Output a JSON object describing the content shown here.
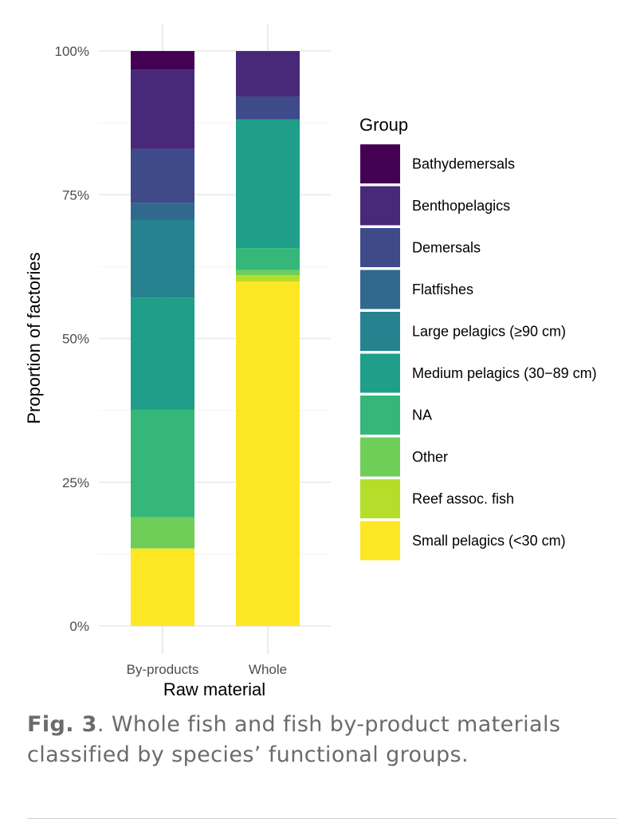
{
  "caption": {
    "label": "Fig. 3",
    "text": ". Whole fish and fish by-product materials classified by species’ functional groups."
  },
  "chart_data": {
    "type": "bar",
    "stacked": true,
    "categories": [
      "By-products",
      "Whole"
    ],
    "xlabel": "Raw material",
    "ylabel": "Proportion of factories",
    "ylim": [
      0,
      1
    ],
    "yticks": [
      {
        "value": 0,
        "label": "0%"
      },
      {
        "value": 0.25,
        "label": "25%"
      },
      {
        "value": 0.5,
        "label": "50%"
      },
      {
        "value": 0.75,
        "label": "75%"
      },
      {
        "value": 1,
        "label": "100%"
      }
    ],
    "grid": true,
    "legend": {
      "title": "Group",
      "position": "right"
    },
    "series": [
      {
        "name": "Small pelagics (<30 cm)",
        "color": "#FDE725",
        "values": [
          0.135,
          0.599
        ]
      },
      {
        "name": "Reef assoc. fish",
        "color": "#B5DE2B",
        "values": [
          0.0,
          0.011
        ]
      },
      {
        "name": "Other",
        "color": "#6ECE58",
        "values": [
          0.054,
          0.009
        ]
      },
      {
        "name": "NA",
        "color": "#35B779",
        "values": [
          0.187,
          0.038
        ]
      },
      {
        "name": "Medium pelagics (30−89 cm)",
        "color": "#1F9E89",
        "values": [
          0.195,
          0.224
        ]
      },
      {
        "name": "Large pelagics (≥90 cm)",
        "color": "#26828E",
        "values": [
          0.135,
          0.0
        ]
      },
      {
        "name": "Flatfishes",
        "color": "#31688E",
        "values": [
          0.03,
          0.0
        ]
      },
      {
        "name": "Demersals",
        "color": "#3E4A89",
        "values": [
          0.094,
          0.04
        ]
      },
      {
        "name": "Benthopelagics",
        "color": "#482878",
        "values": [
          0.138,
          0.079
        ]
      },
      {
        "name": "Bathydemersals",
        "color": "#440154",
        "values": [
          0.032,
          0.0
        ]
      }
    ]
  }
}
